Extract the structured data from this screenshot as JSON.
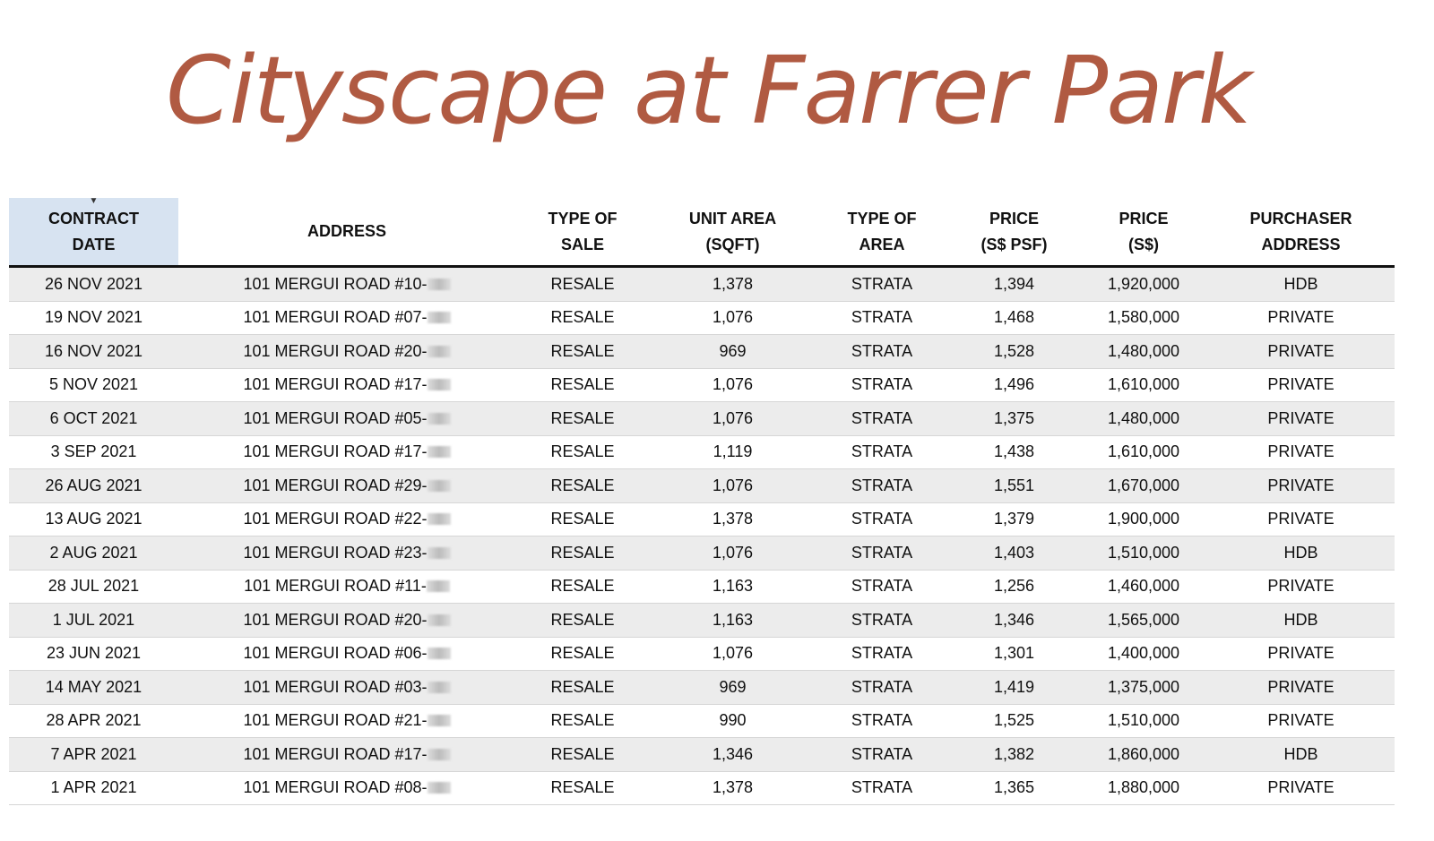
{
  "title": "Cityscape at Farrer Park",
  "columns": [
    [
      "CONTRACT",
      "DATE"
    ],
    [
      "ADDRESS"
    ],
    [
      "TYPE OF",
      "SALE"
    ],
    [
      "UNIT AREA",
      "(SQFT)"
    ],
    [
      "TYPE OF",
      "AREA"
    ],
    [
      "PRICE",
      "(S$ PSF)"
    ],
    [
      "PRICE",
      "(S$)"
    ],
    [
      "PURCHASER",
      "ADDRESS"
    ]
  ],
  "sorted_column": "CONTRACT DATE",
  "rows": [
    [
      "26 NOV 2021",
      "101 MERGUI ROAD #10-",
      "RESALE",
      "1,378",
      "STRATA",
      "1,394",
      "1,920,000",
      "HDB"
    ],
    [
      "19 NOV 2021",
      "101 MERGUI ROAD #07-",
      "RESALE",
      "1,076",
      "STRATA",
      "1,468",
      "1,580,000",
      "PRIVATE"
    ],
    [
      "16 NOV 2021",
      "101 MERGUI ROAD #20-",
      "RESALE",
      "969",
      "STRATA",
      "1,528",
      "1,480,000",
      "PRIVATE"
    ],
    [
      "5 NOV 2021",
      "101 MERGUI ROAD #17-",
      "RESALE",
      "1,076",
      "STRATA",
      "1,496",
      "1,610,000",
      "PRIVATE"
    ],
    [
      "6 OCT 2021",
      "101 MERGUI ROAD #05-",
      "RESALE",
      "1,076",
      "STRATA",
      "1,375",
      "1,480,000",
      "PRIVATE"
    ],
    [
      "3 SEP 2021",
      "101 MERGUI ROAD #17-",
      "RESALE",
      "1,119",
      "STRATA",
      "1,438",
      "1,610,000",
      "PRIVATE"
    ],
    [
      "26 AUG 2021",
      "101 MERGUI ROAD #29-",
      "RESALE",
      "1,076",
      "STRATA",
      "1,551",
      "1,670,000",
      "PRIVATE"
    ],
    [
      "13 AUG 2021",
      "101 MERGUI ROAD #22-",
      "RESALE",
      "1,378",
      "STRATA",
      "1,379",
      "1,900,000",
      "PRIVATE"
    ],
    [
      "2 AUG 2021",
      "101 MERGUI ROAD #23-",
      "RESALE",
      "1,076",
      "STRATA",
      "1,403",
      "1,510,000",
      "HDB"
    ],
    [
      "28 JUL 2021",
      "101 MERGUI ROAD #11-",
      "RESALE",
      "1,163",
      "STRATA",
      "1,256",
      "1,460,000",
      "PRIVATE"
    ],
    [
      "1 JUL 2021",
      "101 MERGUI ROAD #20-",
      "RESALE",
      "1,163",
      "STRATA",
      "1,346",
      "1,565,000",
      "HDB"
    ],
    [
      "23 JUN 2021",
      "101 MERGUI ROAD #06-",
      "RESALE",
      "1,076",
      "STRATA",
      "1,301",
      "1,400,000",
      "PRIVATE"
    ],
    [
      "14 MAY 2021",
      "101 MERGUI ROAD #03-",
      "RESALE",
      "969",
      "STRATA",
      "1,419",
      "1,375,000",
      "PRIVATE"
    ],
    [
      "28 APR 2021",
      "101 MERGUI ROAD #21-",
      "RESALE",
      "990",
      "STRATA",
      "1,525",
      "1,510,000",
      "PRIVATE"
    ],
    [
      "7 APR 2021",
      "101 MERGUI ROAD #17-",
      "RESALE",
      "1,346",
      "STRATA",
      "1,382",
      "1,860,000",
      "HDB"
    ],
    [
      "1 APR 2021",
      "101 MERGUI ROAD #08-",
      "RESALE",
      "1,378",
      "STRATA",
      "1,365",
      "1,880,000",
      "PRIVATE"
    ]
  ]
}
